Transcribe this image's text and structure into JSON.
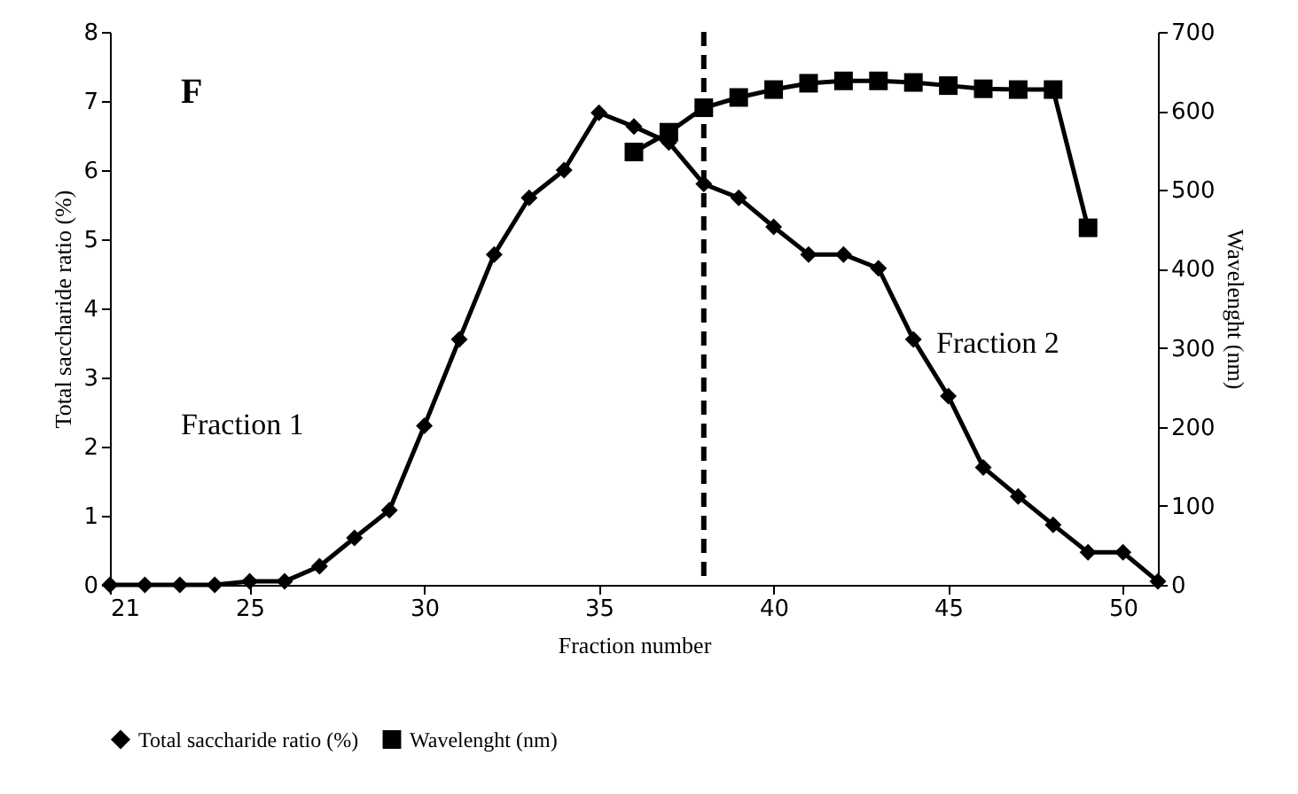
{
  "chart_data": {
    "type": "line",
    "xlabel": "Fraction number",
    "ylabel": "Total saccharide ratio (%)",
    "y2label": "Wavelenght (nm)",
    "x": [
      21,
      22,
      23,
      24,
      25,
      26,
      27,
      28,
      29,
      30,
      31,
      32,
      33,
      34,
      35,
      36,
      37,
      38,
      39,
      40,
      41,
      42,
      43,
      44,
      45,
      46,
      47,
      48,
      49,
      50,
      51
    ],
    "xlim": [
      21,
      51
    ],
    "xticks": [
      21,
      25,
      30,
      35,
      40,
      45,
      50
    ],
    "ylim": [
      0,
      8
    ],
    "yticks": [
      0,
      1,
      2,
      3,
      4,
      5,
      6,
      7,
      8
    ],
    "y2lim": [
      0,
      700
    ],
    "y2ticks": [
      0,
      100,
      200,
      300,
      400,
      500,
      600,
      700
    ],
    "series": [
      {
        "name": "Total saccharide ratio (%)",
        "color": "#000000",
        "marker": "diamond",
        "values": [
          0,
          0,
          0,
          0,
          0.05,
          0.05,
          0.27,
          0.68,
          1.08,
          2.3,
          3.55,
          4.78,
          5.6,
          6.0,
          6.83,
          6.63,
          6.4,
          5.8,
          5.6,
          5.18,
          4.78,
          4.78,
          4.58,
          3.55,
          2.73,
          1.7,
          1.28,
          0.87,
          0.47,
          0.47,
          0.05
        ]
      },
      {
        "name": "Wavelenght (nm)",
        "color": "#000000",
        "marker": "square",
        "axis": "y2",
        "values": [
          null,
          null,
          null,
          null,
          null,
          null,
          null,
          null,
          null,
          null,
          null,
          null,
          null,
          null,
          null,
          548,
          573,
          604,
          617,
          627,
          635,
          638,
          638,
          636,
          632,
          628,
          627,
          627,
          452,
          null,
          null
        ]
      }
    ],
    "ref_lines": [
      {
        "axis": "x",
        "value": 38,
        "line_style": "dashed",
        "color": "#000000"
      }
    ],
    "annotations": [
      "F",
      "Fraction 1",
      "Fraction 2"
    ],
    "legend": "bottom",
    "grid": false
  }
}
